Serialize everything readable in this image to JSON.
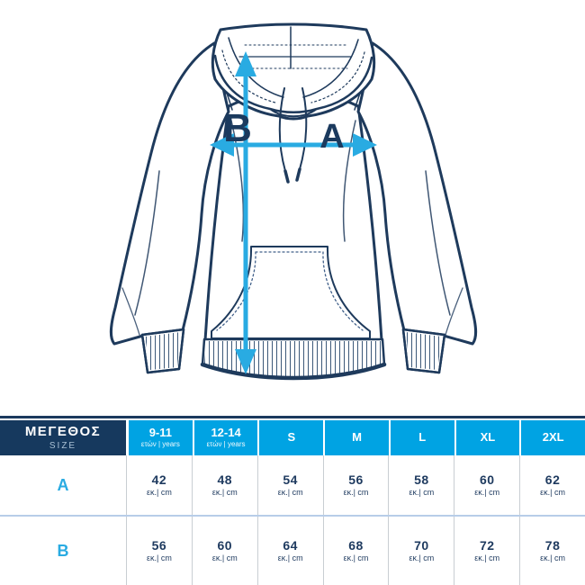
{
  "diagram": {
    "label_a": "A",
    "label_b": "B"
  },
  "table": {
    "header": {
      "size_label_primary": "ΜΕΓΕΘΟΣ",
      "size_label_secondary": "SIZE",
      "columns": [
        {
          "label": "9-11",
          "sublabel": "ετών | years"
        },
        {
          "label": "12-14",
          "sublabel": "ετών | years"
        },
        {
          "label": "S",
          "sublabel": ""
        },
        {
          "label": "M",
          "sublabel": ""
        },
        {
          "label": "L",
          "sublabel": ""
        },
        {
          "label": "XL",
          "sublabel": ""
        },
        {
          "label": "2XL",
          "sublabel": ""
        }
      ]
    },
    "unit_label": "εκ.| cm",
    "rows": [
      {
        "label": "A",
        "values": [
          "42",
          "48",
          "54",
          "56",
          "58",
          "60",
          "62"
        ]
      },
      {
        "label": "B",
        "values": [
          "56",
          "60",
          "64",
          "68",
          "70",
          "72",
          "78"
        ]
      }
    ]
  },
  "colors": {
    "accent_cyan": "#29abe2",
    "header_cyan": "#00a3e3",
    "header_navy": "#16395e",
    "line_navy": "#1e3a5c"
  }
}
